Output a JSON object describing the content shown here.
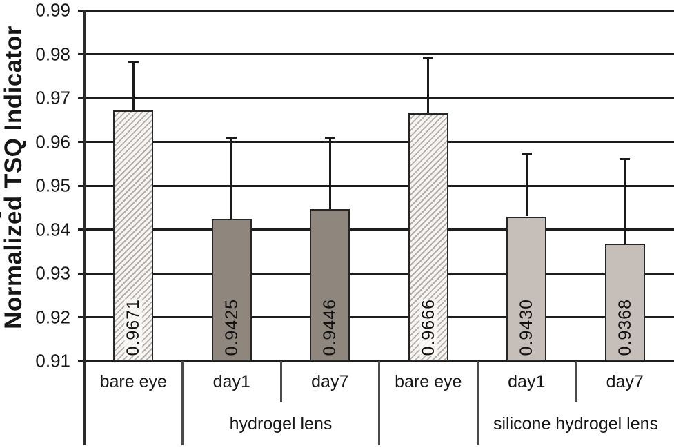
{
  "chart_data": {
    "type": "bar",
    "title": "",
    "ylabel": "Normalized TSQ Indicator",
    "xlabel": "",
    "ylim": [
      0.91,
      0.99
    ],
    "ytick_step": 0.01,
    "yticks": [
      "0.99",
      "0.98",
      "0.97",
      "0.96",
      "0.95",
      "0.94",
      "0.93",
      "0.92",
      "0.91"
    ],
    "grid": "horizontal",
    "legend": "none",
    "categories": [
      "bare eye",
      "day1",
      "day7",
      "bare eye",
      "day1",
      "day7"
    ],
    "bars": [
      {
        "category": "bare eye",
        "value": 0.9671,
        "label": "0.9671",
        "error_top": 0.9783,
        "style": "hatched"
      },
      {
        "category": "day1",
        "value": 0.9425,
        "label": "0.9425",
        "error_top": 0.9609,
        "style": "dark"
      },
      {
        "category": "day7",
        "value": 0.9446,
        "label": "0.9446",
        "error_top": 0.9609,
        "style": "dark"
      },
      {
        "category": "bare eye",
        "value": 0.9666,
        "label": "0.9666",
        "error_top": 0.9791,
        "style": "hatched"
      },
      {
        "category": "day1",
        "value": 0.943,
        "label": "0.9430",
        "error_top": 0.9574,
        "style": "light"
      },
      {
        "category": "day7",
        "value": 0.9368,
        "label": "0.9368",
        "error_top": 0.956,
        "style": "light"
      }
    ],
    "groups": [
      {
        "label": "hydrogel lens",
        "start_cell": 1,
        "end_cell": 2
      },
      {
        "label": "silicone hydrogel lens",
        "start_cell": 4,
        "end_cell": 5
      }
    ],
    "group_boundaries": {
      "long_after_cells": [
        0,
        2,
        3
      ],
      "short_after_cells": [
        1,
        4
      ]
    },
    "colors": {
      "dark_bar": "#8f867e",
      "light_bar": "#c6beb9",
      "hatch_line": "#b3aca7",
      "hatch_bg": "#f7f5f3",
      "bar_border": "#262626",
      "gridline": "#1d1d1d",
      "divider": "#4a4a4a",
      "text": "#161616"
    }
  }
}
